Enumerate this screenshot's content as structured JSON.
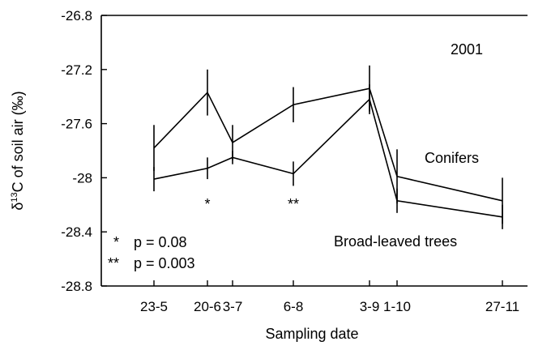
{
  "chart_data": {
    "type": "line",
    "categories": [
      "23-5",
      "20-6",
      "3-7",
      "6-8",
      "3-9",
      "1-10",
      "27-11"
    ],
    "xlabel": "Sampling date",
    "ylabel_parts": {
      "delta": "δ",
      "sup": "13",
      "main": "C of soil air",
      "unit": "(‰)"
    },
    "ylim": [
      -28.8,
      -26.8
    ],
    "yticks": [
      -26.8,
      -27.2,
      -27.6,
      -28,
      -28.4,
      -28.8
    ],
    "ytick_labels": [
      "-26.8",
      "-27.2",
      "-27.6",
      "-28",
      "-28.4",
      "-28.8"
    ],
    "series": [
      {
        "name": "Conifers",
        "values": [
          -28.01,
          -27.93,
          -27.85,
          -27.97,
          -27.42,
          -28.17,
          -28.29
        ],
        "errors": [
          0.09,
          0.08,
          0.05,
          0.09,
          0.11,
          0.09,
          0.09
        ]
      },
      {
        "name": "Broad-leaved trees",
        "values": [
          -27.78,
          -27.37,
          -27.74,
          -27.46,
          -27.34,
          -27.99,
          -28.17
        ],
        "errors": [
          0.17,
          0.17,
          0.13,
          0.13,
          0.17,
          0.2,
          0.17
        ]
      }
    ],
    "significance_marks": [
      {
        "category": "20-6",
        "symbol": "*"
      },
      {
        "category": "6-8",
        "symbol": "**"
      }
    ],
    "annotations": {
      "year": "2001",
      "legend_p": [
        {
          "symbol": "*",
          "text": "p = 0.08"
        },
        {
          "symbol": "**",
          "text": "p = 0.003"
        }
      ]
    }
  }
}
